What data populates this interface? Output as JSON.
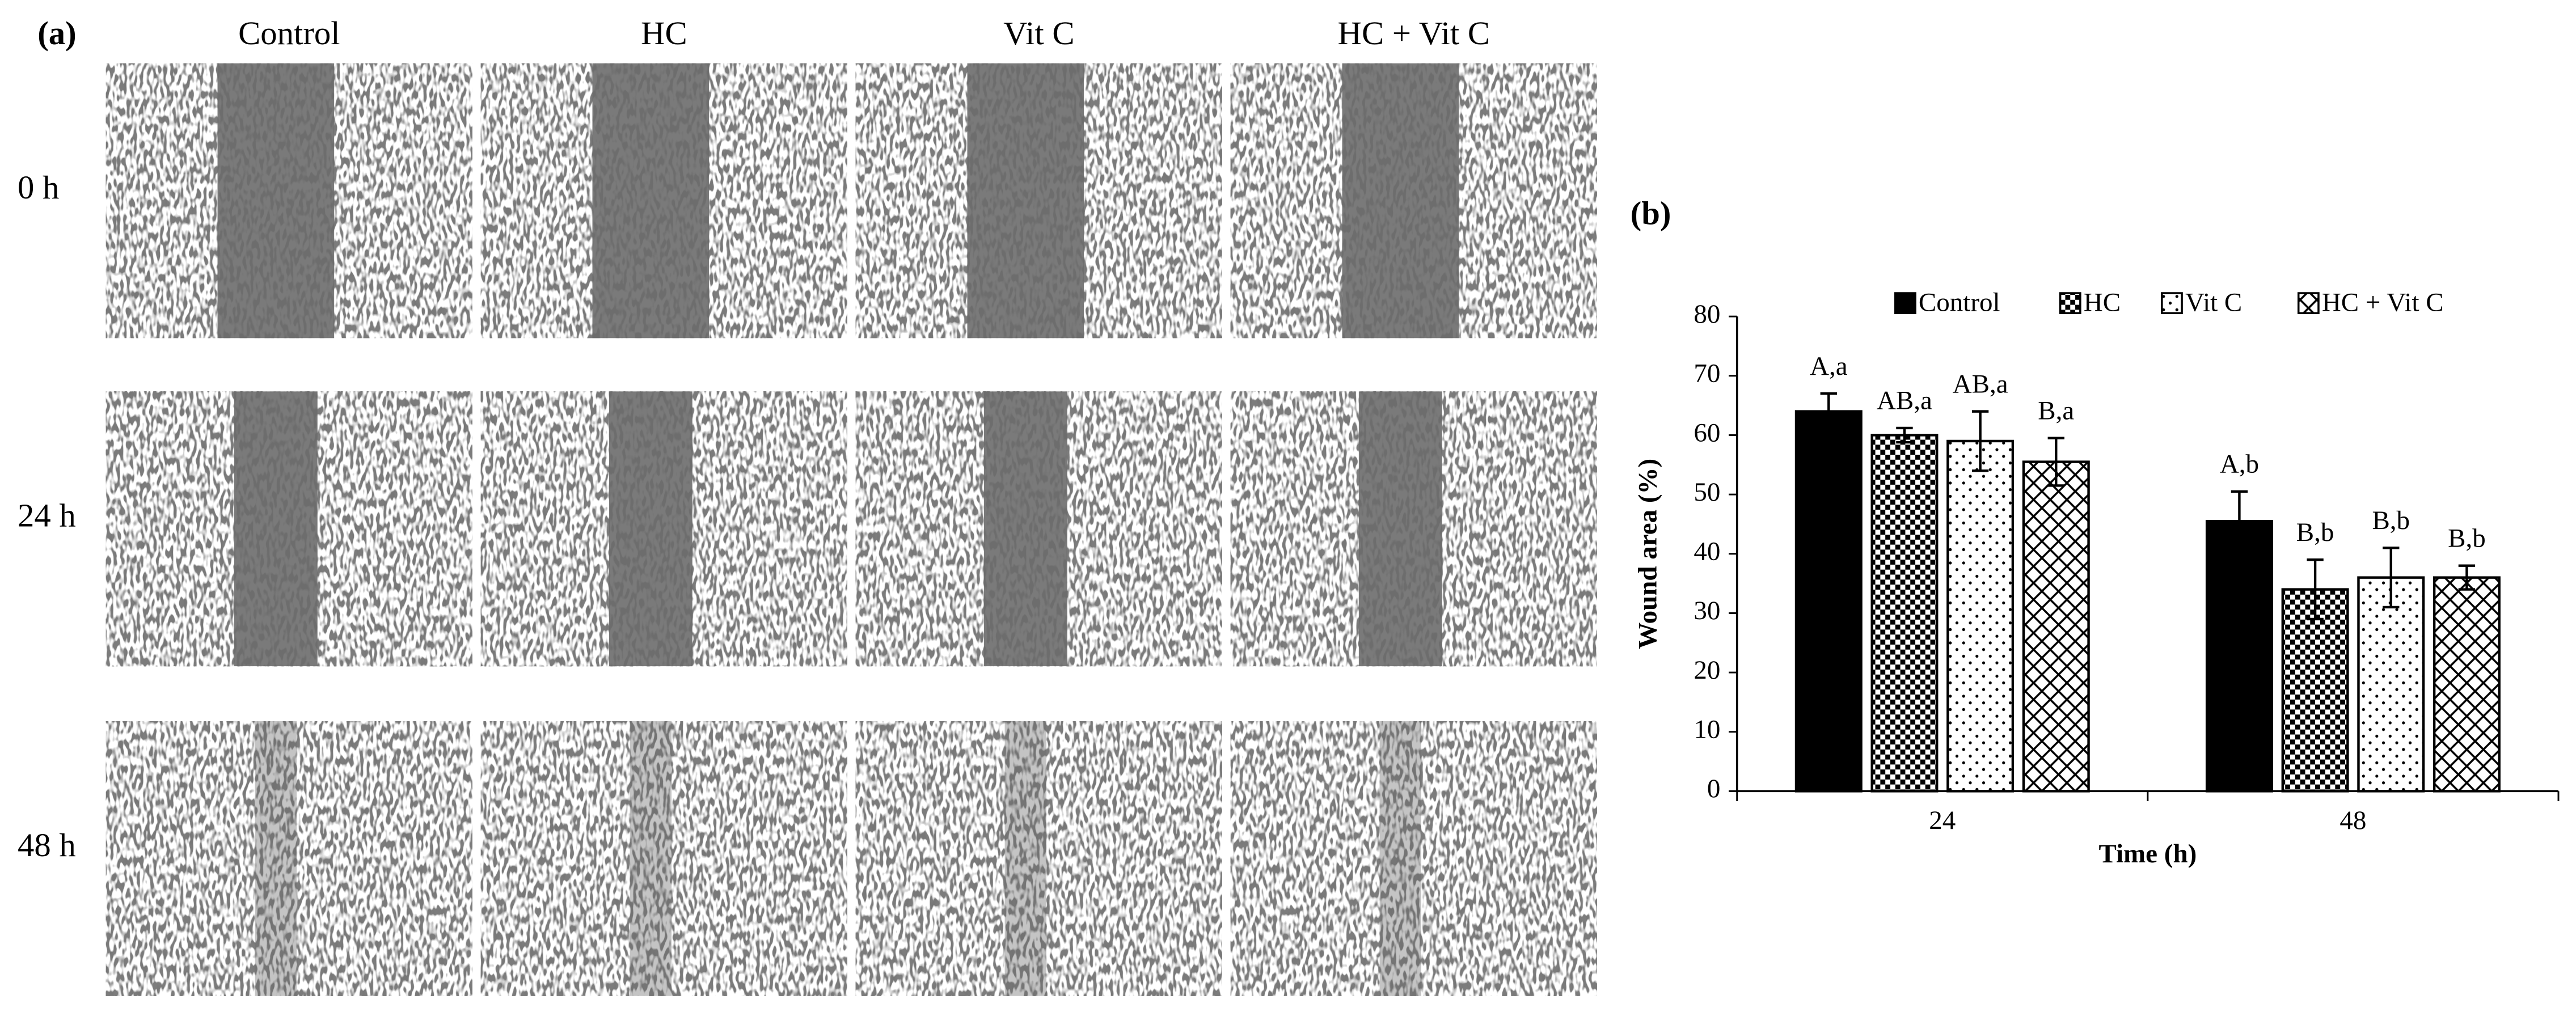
{
  "panel_a": {
    "label": "(a)",
    "columns": [
      "Control",
      "HC",
      "Vit C",
      "HC + Vit C"
    ],
    "rows": [
      "0 h",
      "24 h",
      "48 h"
    ]
  },
  "chart_data": {
    "type": "bar",
    "label": "(b)",
    "x_label": "Time (h)",
    "y_label": "Wound area (%)",
    "categories": [
      "24",
      "48"
    ],
    "series": [
      {
        "name": "Control",
        "color": "#000000",
        "pattern": "solid",
        "values": [
          64,
          45.5
        ],
        "errors": [
          3,
          5
        ],
        "labels": [
          "A,a",
          "A,b"
        ]
      },
      {
        "name": "HC",
        "color": "#000000",
        "pattern": "checker",
        "values": [
          60,
          34
        ],
        "errors": [
          1.2,
          5
        ],
        "labels": [
          "AB,a",
          "B,b"
        ]
      },
      {
        "name": "Vit C",
        "color": "#000000",
        "pattern": "dots",
        "values": [
          59,
          36
        ],
        "errors": [
          5,
          5
        ],
        "labels": [
          "AB,a",
          "B,b"
        ]
      },
      {
        "name": "HC + Vit C",
        "color": "#000000",
        "pattern": "cross",
        "values": [
          55.5,
          36
        ],
        "errors": [
          4,
          2
        ],
        "labels": [
          "B,a",
          "B,b"
        ]
      }
    ],
    "ylim": [
      0,
      80
    ],
    "yticks": [
      0,
      10,
      20,
      30,
      40,
      50,
      60,
      70,
      80
    ],
    "legend": "top",
    "grid": false
  }
}
